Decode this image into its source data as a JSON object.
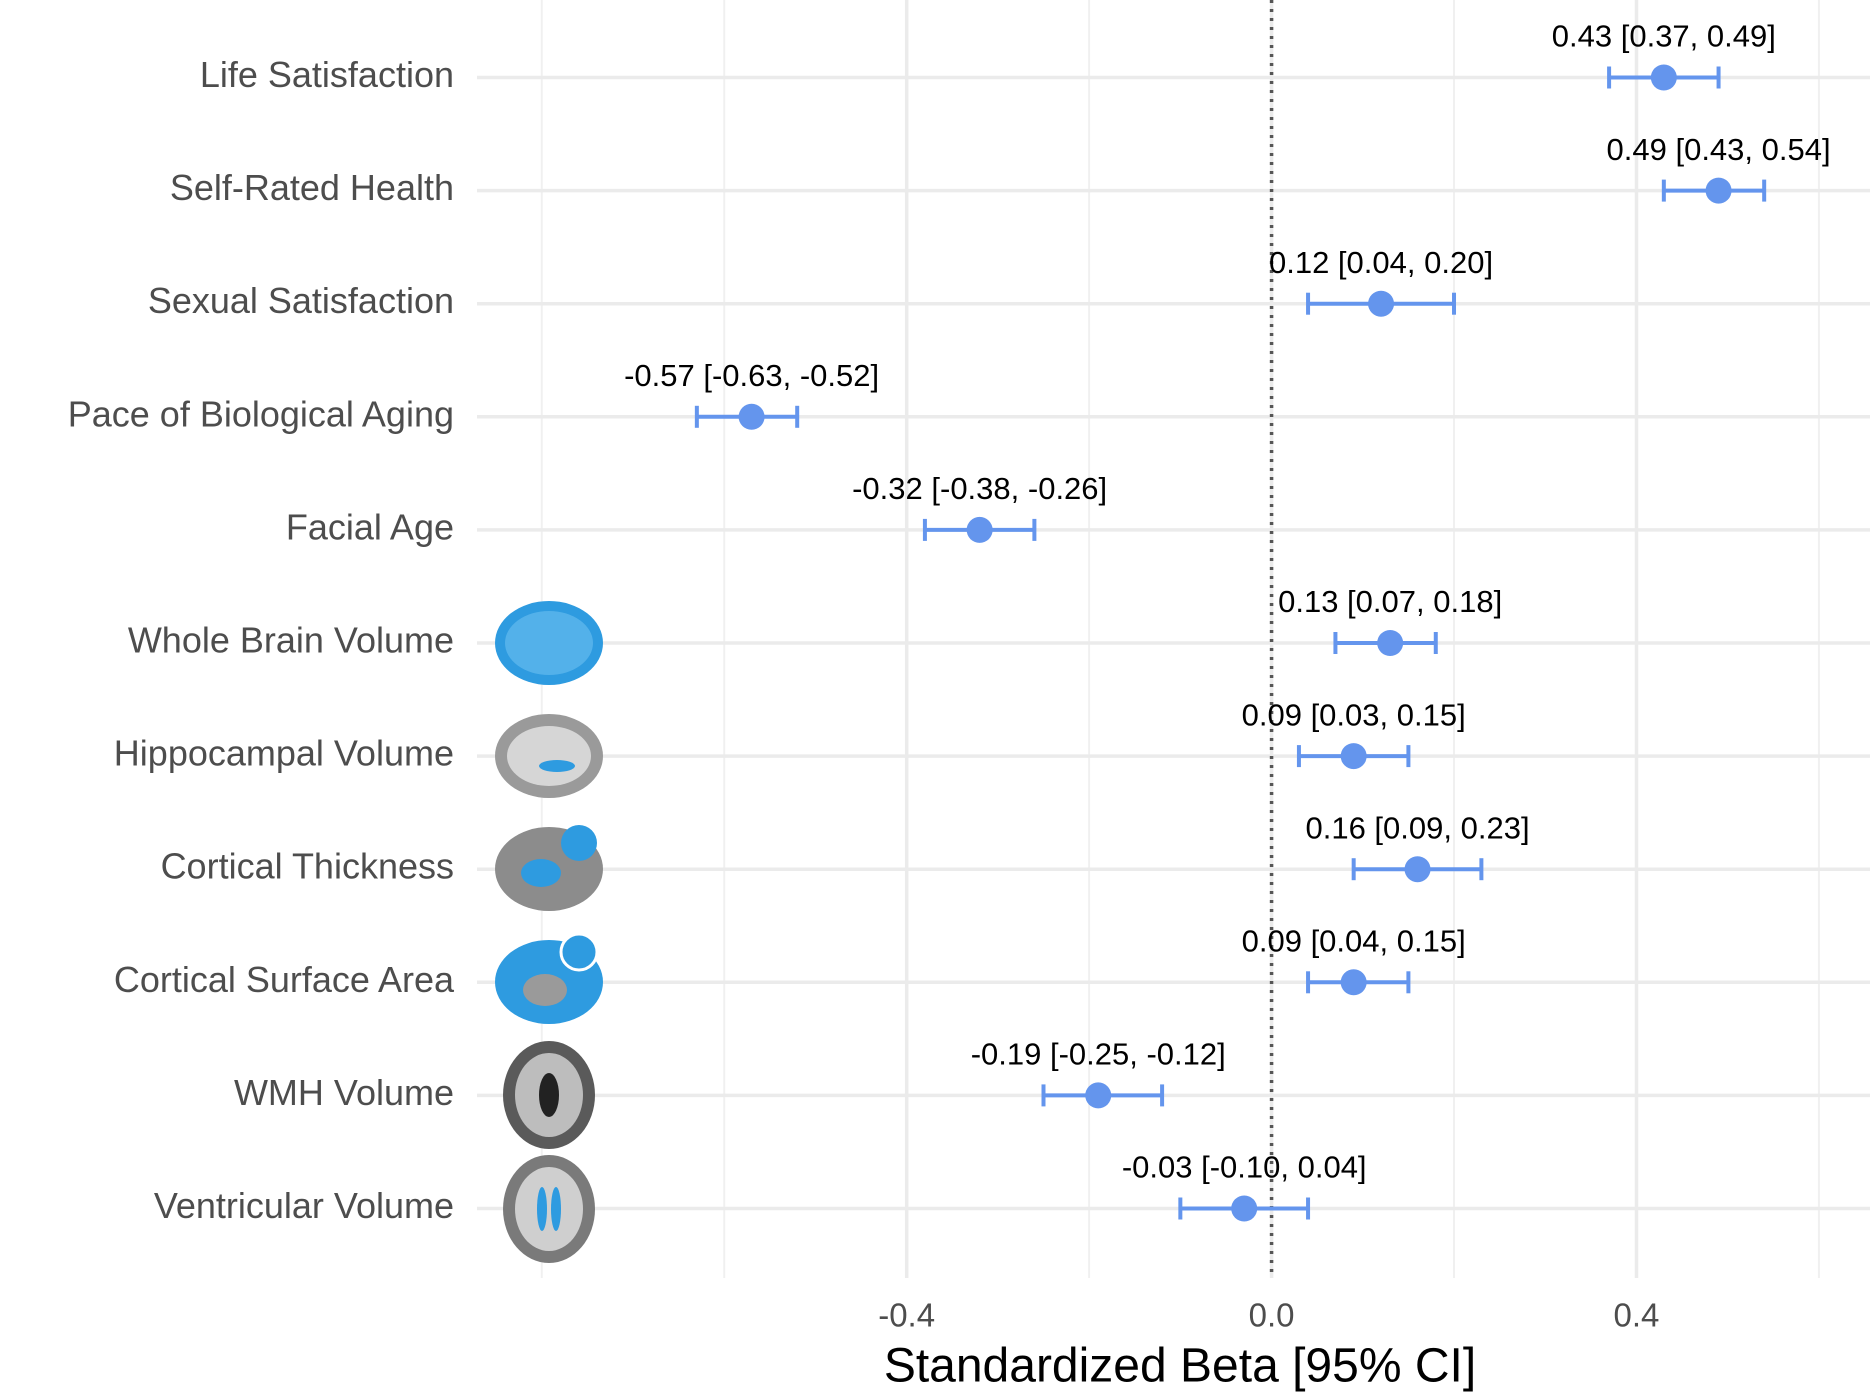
{
  "chart_data": {
    "type": "forest",
    "xlabel": "Standardized Beta [95% CI]",
    "categories": [
      "Life Satisfaction",
      "Self-Rated Health",
      "Sexual Satisfaction",
      "Pace of Biological Aging",
      "Facial Age",
      "Whole Brain Volume",
      "Hippocampal Volume",
      "Cortical Thickness",
      "Cortical Surface Area",
      "WMH Volume",
      "Ventricular Volume"
    ],
    "values": [
      0.43,
      0.49,
      0.12,
      -0.57,
      -0.32,
      0.13,
      0.09,
      0.16,
      0.09,
      -0.19,
      -0.03
    ],
    "ci_lower": [
      0.37,
      0.43,
      0.04,
      -0.63,
      -0.38,
      0.07,
      0.03,
      0.09,
      0.04,
      -0.25,
      -0.1
    ],
    "ci_upper": [
      0.49,
      0.54,
      0.2,
      -0.52,
      -0.26,
      0.18,
      0.15,
      0.23,
      0.15,
      -0.12,
      0.04
    ],
    "value_labels": [
      "0.43 [0.37, 0.49]",
      "0.49 [0.43, 0.54]",
      "0.12 [0.04, 0.20]",
      "-0.57 [-0.63, -0.52]",
      "-0.32 [-0.38, -0.26]",
      "0.13 [0.07, 0.18]",
      "0.09 [0.03, 0.15]",
      "0.16 [0.09, 0.23]",
      "0.09 [0.04, 0.15]",
      "-0.19 [-0.25, -0.12]",
      "-0.03 [-0.10, 0.04]"
    ],
    "color": "#6495ed",
    "xlim": [
      -0.871,
      0.656
    ],
    "xticks": [
      -0.4,
      {
        "value": 0,
        "label": "0.0"
      },
      0.4
    ],
    "minor_xticks": [
      -0.8,
      -0.6,
      -0.2,
      0.2,
      0.6
    ],
    "reference_line": 0,
    "grid": true
  }
}
